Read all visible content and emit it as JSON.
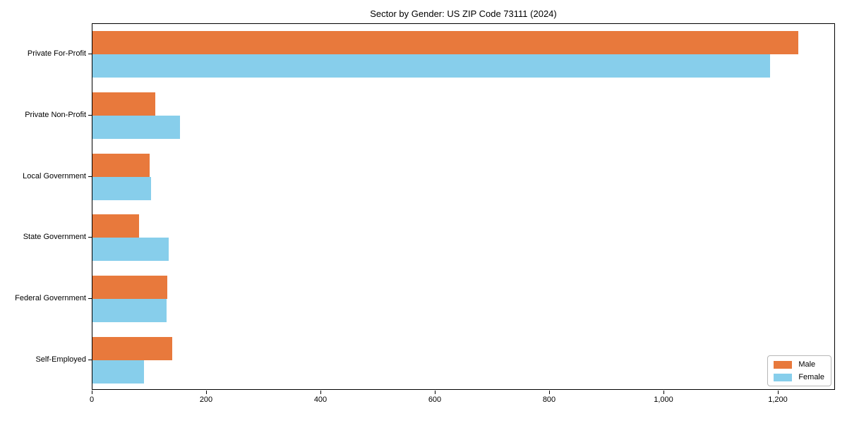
{
  "figure": {
    "background_color": "#ffffff",
    "axis_color": "#000000"
  },
  "chart_data": {
    "type": "bar",
    "orientation": "horizontal",
    "title": "Sector by Gender: US ZIP Code 73111 (2024)",
    "xlabel": "",
    "ylabel": "",
    "grid": false,
    "categories": [
      "Private For-Profit",
      "Private Non-Profit",
      "Local Government",
      "State Government",
      "Federal Government",
      "Self-Employed"
    ],
    "series": [
      {
        "name": "Male",
        "color": "#E8793C",
        "values": [
          1235,
          110,
          100,
          82,
          131,
          140
        ]
      },
      {
        "name": "Female",
        "color": "#87CEEB",
        "values": [
          1185,
          153,
          103,
          133,
          130,
          90
        ]
      }
    ],
    "xlim": [
      0,
      1300
    ],
    "xticks": [
      0,
      200,
      400,
      600,
      800,
      1000,
      1200
    ],
    "xtick_labels": [
      "0",
      "200",
      "400",
      "600",
      "800",
      "1,000",
      "1,200"
    ],
    "legend_position": "lower right"
  }
}
